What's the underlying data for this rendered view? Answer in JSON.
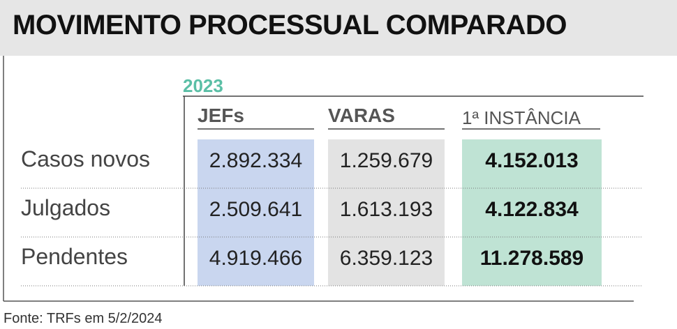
{
  "header": {
    "title": "MOVIMENTO PROCESSUAL COMPARADO"
  },
  "table": {
    "year": "2023",
    "columns": [
      "JEFs",
      "VARAS",
      "1ª INSTÂNCIA"
    ],
    "rows": [
      [
        "Casos novos",
        "2.892.334",
        "1.259.679",
        "4.152.013"
      ],
      [
        "Julgados",
        "2.509.641",
        "1.613.193",
        "4.122.834"
      ],
      [
        "Pendentes",
        "4.919.466",
        "6.359.123",
        "11.278.589"
      ]
    ]
  },
  "footer": {
    "source": "Fonte: TRFs em 5/2/2024"
  }
}
